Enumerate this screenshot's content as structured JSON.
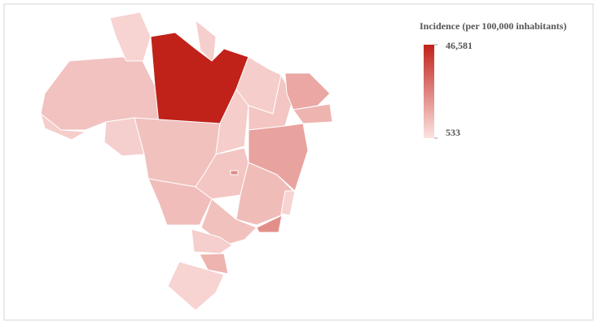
{
  "legend": {
    "title": "Incidence (per 100,000 inhabitants)",
    "max": {
      "value": 46581,
      "label": "46,581"
    },
    "min": 533,
    "colors": [
      "#fde3e1",
      "#c0221a"
    ]
  }
}
